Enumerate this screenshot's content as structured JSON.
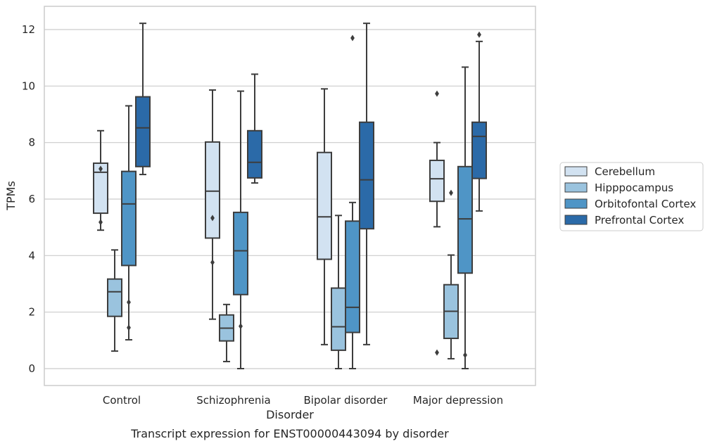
{
  "chart_data": {
    "type": "box",
    "xlabel": "Disorder",
    "ylabel": "TPMs",
    "caption": "Transcript expression for ENST00000443094 by disorder",
    "categories": [
      "Control",
      "Schizophrenia",
      "Bipolar disorder",
      "Major depression"
    ],
    "ylim": [
      -0.6,
      12.8
    ],
    "yticks": [
      0,
      2,
      4,
      6,
      8,
      10,
      12
    ],
    "grid": "horizontal",
    "legend_position": "right",
    "series": [
      {
        "name": "Cerebellum",
        "color": "#d2e2f1",
        "boxes": [
          {
            "whislo": 4.9,
            "q1": 5.5,
            "med": 6.95,
            "q3": 7.27,
            "whishi": 8.42,
            "fliers": [
              7.07,
              5.18
            ]
          },
          {
            "whislo": 1.75,
            "q1": 4.62,
            "med": 6.28,
            "q3": 8.02,
            "whishi": 9.86,
            "fliers": [
              5.33,
              3.76
            ]
          },
          {
            "whislo": 0.85,
            "q1": 3.87,
            "med": 5.37,
            "q3": 7.65,
            "whishi": 9.9,
            "fliers": []
          },
          {
            "whislo": 5.02,
            "q1": 5.92,
            "med": 6.72,
            "q3": 7.37,
            "whishi": 8.0,
            "fliers": [
              9.73,
              0.57
            ]
          }
        ]
      },
      {
        "name": "Hipppocampus",
        "color": "#9ac3de",
        "boxes": [
          {
            "whislo": 0.62,
            "q1": 1.85,
            "med": 2.72,
            "q3": 3.17,
            "whishi": 4.2,
            "fliers": []
          },
          {
            "whislo": 0.25,
            "q1": 0.98,
            "med": 1.43,
            "q3": 1.9,
            "whishi": 2.27,
            "fliers": []
          },
          {
            "whislo": 0.0,
            "q1": 0.65,
            "med": 1.48,
            "q3": 2.85,
            "whishi": 5.42,
            "fliers": []
          },
          {
            "whislo": 0.35,
            "q1": 1.07,
            "med": 2.03,
            "q3": 2.97,
            "whishi": 4.02,
            "fliers": [
              6.22
            ]
          }
        ]
      },
      {
        "name": "Orbitofontal Cortex",
        "color": "#4f95c6",
        "boxes": [
          {
            "whislo": 1.02,
            "q1": 3.65,
            "med": 5.83,
            "q3": 6.98,
            "whishi": 9.3,
            "fliers": [
              2.35,
              1.45
            ]
          },
          {
            "whislo": 0.0,
            "q1": 2.62,
            "med": 4.17,
            "q3": 5.53,
            "whishi": 9.82,
            "fliers": [
              1.5
            ]
          },
          {
            "whislo": 0.0,
            "q1": 1.28,
            "med": 2.17,
            "q3": 5.22,
            "whishi": 5.88,
            "fliers": [
              11.7
            ]
          },
          {
            "whislo": 0.0,
            "q1": 3.38,
            "med": 5.3,
            "q3": 7.15,
            "whishi": 10.67,
            "fliers": [
              0.48
            ]
          }
        ]
      },
      {
        "name": "Prefrontal Cortex",
        "color": "#2b6aa8",
        "boxes": [
          {
            "whislo": 6.87,
            "q1": 7.15,
            "med": 8.52,
            "q3": 9.62,
            "whishi": 12.22,
            "fliers": []
          },
          {
            "whislo": 6.57,
            "q1": 6.75,
            "med": 7.3,
            "q3": 8.42,
            "whishi": 10.42,
            "fliers": []
          },
          {
            "whislo": 0.85,
            "q1": 4.95,
            "med": 6.68,
            "q3": 8.72,
            "whishi": 12.22,
            "fliers": []
          },
          {
            "whislo": 5.58,
            "q1": 6.73,
            "med": 8.22,
            "q3": 8.72,
            "whishi": 11.58,
            "fliers": [
              11.82
            ]
          }
        ]
      }
    ]
  }
}
